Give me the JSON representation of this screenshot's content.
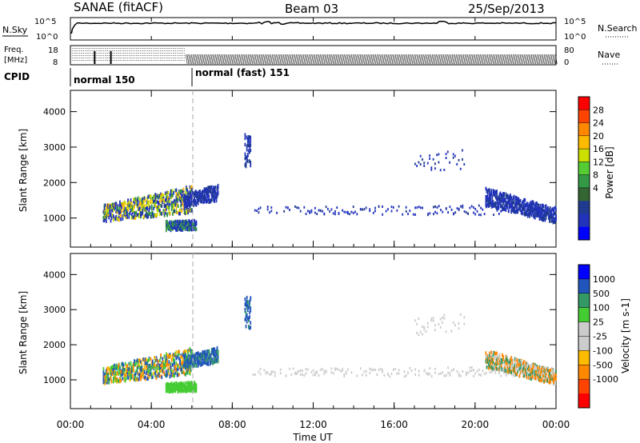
{
  "header": {
    "title": "SANAE (fitACF)",
    "beam": "Beam 03",
    "date": "25/Sep/2013"
  },
  "noise_panel": {
    "left_label": "N.Sky",
    "right_label": "N.Search",
    "left_ticks": [
      "10^5",
      "10^0"
    ],
    "right_ticks": [
      "10^5",
      "10^0"
    ]
  },
  "freq_panel": {
    "left_label_1": "Freq.",
    "left_label_2": "[MHz]",
    "right_label": "Nave",
    "left_ticks": [
      "18",
      "8"
    ],
    "right_ticks": [
      "80",
      "0"
    ]
  },
  "cpid": {
    "label": "CPID",
    "modes": [
      {
        "name": "normal 150",
        "start_hour": 0
      },
      {
        "name": "normal (fast) 151",
        "start_hour": 6
      }
    ]
  },
  "x_axis": {
    "label": "Time UT",
    "ticks": [
      "00:00",
      "04:00",
      "08:00",
      "12:00",
      "16:00",
      "20:00",
      "00:00"
    ],
    "range_hours": [
      0,
      24
    ]
  },
  "chart_data": [
    {
      "type": "heatmap",
      "title": "",
      "xlabel": "Time UT",
      "ylabel": "Slant Range [km]",
      "xlim": [
        0,
        24
      ],
      "ylim": [
        180,
        4600
      ],
      "yticks": [
        "1000",
        "2000",
        "3000",
        "4000"
      ],
      "colorbar": {
        "label": "Power [dB]",
        "ticks": [
          "28",
          "24",
          "20",
          "16",
          "12",
          "8",
          "4"
        ],
        "colors": [
          "#ff0000",
          "#ff4400",
          "#ff8800",
          "#ffbb00",
          "#ccdd00",
          "#55cc33",
          "#339944",
          "#336633",
          "#1f3a8f",
          "#2233bb",
          "#0000ff"
        ]
      },
      "regions": [
        {
          "t0": 1.6,
          "t1": 6.0,
          "r_low_start": 950,
          "r_high_start": 1400,
          "r_low_end": 1200,
          "r_high_end": 1950,
          "level": "strong"
        },
        {
          "t0": 5.6,
          "t1": 7.3,
          "r_low_start": 1350,
          "r_high_start": 1700,
          "r_low_end": 1550,
          "r_high_end": 2000,
          "level": "weak"
        },
        {
          "t0": 4.7,
          "t1": 6.2,
          "r_low_start": 700,
          "r_high_start": 950,
          "r_low_end": 720,
          "r_high_end": 980,
          "level": "medium"
        },
        {
          "t0": 8.6,
          "t1": 8.9,
          "r_low_start": 2500,
          "r_high_start": 3400,
          "r_low_end": 2500,
          "r_high_end": 3400,
          "level": "weak"
        },
        {
          "t0": 9.0,
          "t1": 24.0,
          "r_low_start": 1150,
          "r_high_start": 1350,
          "r_low_end": 1100,
          "r_high_end": 1400,
          "level": "sparse"
        },
        {
          "t0": 17.0,
          "t1": 19.5,
          "r_low_start": 2300,
          "r_high_start": 2800,
          "r_low_end": 2400,
          "r_high_end": 3000,
          "level": "sparse"
        },
        {
          "t0": 20.5,
          "t1": 24.0,
          "r_low_start": 1400,
          "r_high_start": 1900,
          "r_low_end": 900,
          "r_high_end": 1300,
          "level": "weak"
        }
      ]
    },
    {
      "type": "heatmap",
      "title": "",
      "xlabel": "Time UT",
      "ylabel": "Slant Range [km]",
      "xlim": [
        0,
        24
      ],
      "ylim": [
        180,
        4600
      ],
      "yticks": [
        "1000",
        "2000",
        "3000",
        "4000"
      ],
      "colorbar": {
        "label": "Velocity [m s-1]",
        "ticks": [
          "1000",
          "500",
          "100",
          "25",
          "-25",
          "-100",
          "-500",
          "-1000"
        ],
        "colors": [
          "#0000ff",
          "#2255bb",
          "#339966",
          "#44cc33",
          "#cccccc",
          "#cccccc",
          "#ffbb00",
          "#ff8800",
          "#ff4400",
          "#ff0000"
        ]
      },
      "regions": [
        {
          "t0": 1.6,
          "t1": 6.0,
          "r_low_start": 950,
          "r_high_start": 1400,
          "r_low_end": 1200,
          "r_high_end": 1950,
          "level": "mixed"
        },
        {
          "t0": 5.6,
          "t1": 7.3,
          "r_low_start": 1350,
          "r_high_start": 1700,
          "r_low_end": 1550,
          "r_high_end": 2000,
          "level": "blue"
        },
        {
          "t0": 4.7,
          "t1": 6.2,
          "r_low_start": 700,
          "r_high_start": 950,
          "r_low_end": 720,
          "r_high_end": 980,
          "level": "green"
        },
        {
          "t0": 8.6,
          "t1": 8.9,
          "r_low_start": 2500,
          "r_high_start": 3400,
          "r_low_end": 2500,
          "r_high_end": 3400,
          "level": "blue"
        },
        {
          "t0": 9.0,
          "t1": 24.0,
          "r_low_start": 1150,
          "r_high_start": 1350,
          "r_low_end": 1100,
          "r_high_end": 1400,
          "level": "grey"
        },
        {
          "t0": 17.0,
          "t1": 19.5,
          "r_low_start": 2300,
          "r_high_start": 2800,
          "r_low_end": 2400,
          "r_high_end": 3000,
          "level": "grey"
        },
        {
          "t0": 20.5,
          "t1": 24.0,
          "r_low_start": 1400,
          "r_high_start": 1900,
          "r_low_end": 900,
          "r_high_end": 1300,
          "level": "orange"
        }
      ]
    }
  ]
}
